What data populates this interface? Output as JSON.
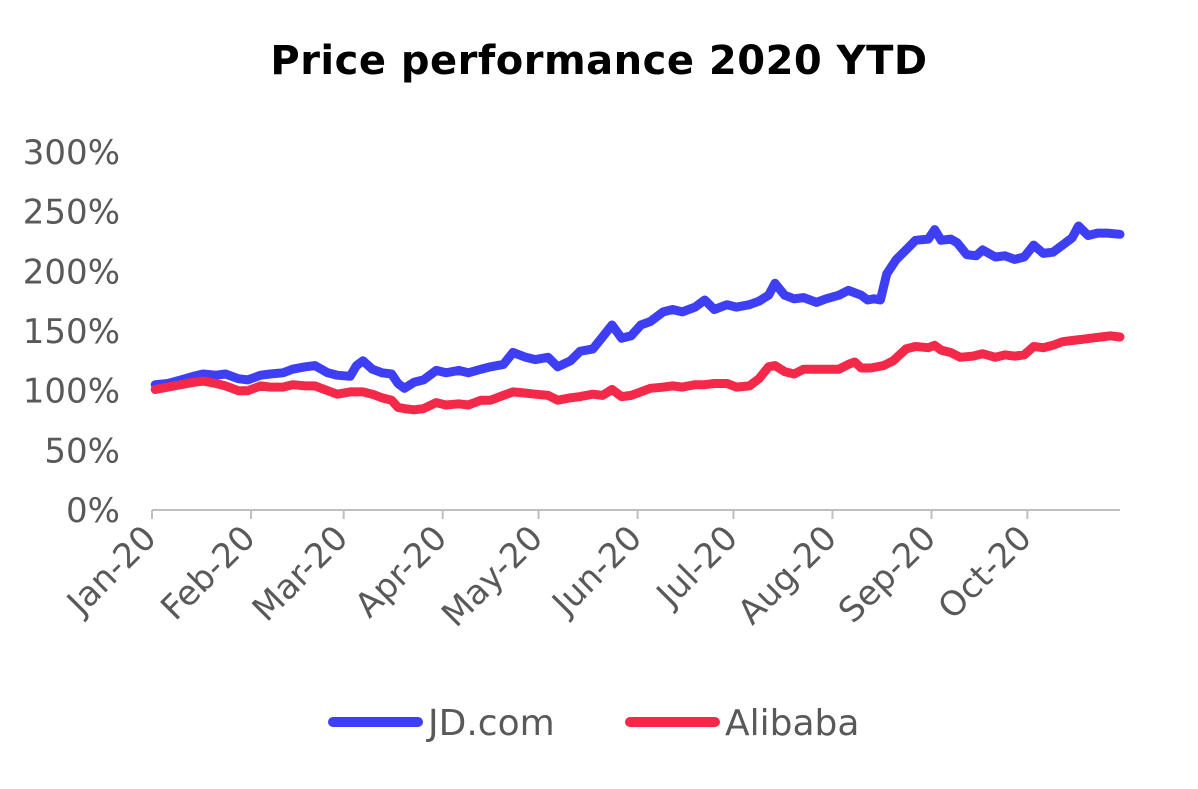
{
  "chart_data": {
    "type": "line",
    "title": "Price performance 2020 YTD",
    "xlabel": "",
    "ylabel": "",
    "ylim": [
      0,
      3.0
    ],
    "y_tick_values": [
      0,
      0.5,
      1.0,
      1.5,
      2.0,
      2.5,
      3.0
    ],
    "y_tick_labels": [
      "0%",
      "50%",
      "100%",
      "150%",
      "200%",
      "250%",
      "300%"
    ],
    "x_tick_labels": [
      "Jan-20",
      "Feb-20",
      "Mar-20",
      "Apr-20",
      "May-20",
      "Jun-20",
      "Jul-20",
      "Aug-20",
      "Sep-20",
      "Oct-20"
    ],
    "x_range": [
      "2020-01-01",
      "2020-10-30"
    ],
    "grid": false,
    "legend_position": "bottom",
    "series": [
      {
        "name": "JD.com",
        "color": "#3e3ef5",
        "points": [
          [
            "2020-01-02",
            1.05
          ],
          [
            "2020-01-06",
            1.06
          ],
          [
            "2020-01-10",
            1.09
          ],
          [
            "2020-01-14",
            1.12
          ],
          [
            "2020-01-17",
            1.14
          ],
          [
            "2020-01-21",
            1.13
          ],
          [
            "2020-01-24",
            1.14
          ],
          [
            "2020-01-28",
            1.1
          ],
          [
            "2020-01-31",
            1.09
          ],
          [
            "2020-02-04",
            1.13
          ],
          [
            "2020-02-07",
            1.14
          ],
          [
            "2020-02-11",
            1.15
          ],
          [
            "2020-02-14",
            1.18
          ],
          [
            "2020-02-18",
            1.2
          ],
          [
            "2020-02-21",
            1.21
          ],
          [
            "2020-02-25",
            1.15
          ],
          [
            "2020-02-28",
            1.13
          ],
          [
            "2020-03-03",
            1.12
          ],
          [
            "2020-03-05",
            1.21
          ],
          [
            "2020-03-07",
            1.25
          ],
          [
            "2020-03-10",
            1.18
          ],
          [
            "2020-03-13",
            1.15
          ],
          [
            "2020-03-16",
            1.14
          ],
          [
            "2020-03-18",
            1.06
          ],
          [
            "2020-03-20",
            1.02
          ],
          [
            "2020-03-23",
            1.07
          ],
          [
            "2020-03-26",
            1.09
          ],
          [
            "2020-03-30",
            1.17
          ],
          [
            "2020-04-02",
            1.15
          ],
          [
            "2020-04-06",
            1.17
          ],
          [
            "2020-04-09",
            1.15
          ],
          [
            "2020-04-13",
            1.18
          ],
          [
            "2020-04-16",
            1.2
          ],
          [
            "2020-04-20",
            1.22
          ],
          [
            "2020-04-23",
            1.32
          ],
          [
            "2020-04-27",
            1.28
          ],
          [
            "2020-04-30",
            1.26
          ],
          [
            "2020-05-04",
            1.28
          ],
          [
            "2020-05-07",
            1.2
          ],
          [
            "2020-05-11",
            1.25
          ],
          [
            "2020-05-14",
            1.33
          ],
          [
            "2020-05-18",
            1.35
          ],
          [
            "2020-05-21",
            1.45
          ],
          [
            "2020-05-24",
            1.55
          ],
          [
            "2020-05-27",
            1.44
          ],
          [
            "2020-05-30",
            1.46
          ],
          [
            "2020-06-02",
            1.55
          ],
          [
            "2020-06-05",
            1.58
          ],
          [
            "2020-06-09",
            1.66
          ],
          [
            "2020-06-12",
            1.68
          ],
          [
            "2020-06-15",
            1.66
          ],
          [
            "2020-06-19",
            1.7
          ],
          [
            "2020-06-22",
            1.76
          ],
          [
            "2020-06-25",
            1.68
          ],
          [
            "2020-06-29",
            1.72
          ],
          [
            "2020-07-02",
            1.7
          ],
          [
            "2020-07-06",
            1.72
          ],
          [
            "2020-07-09",
            1.75
          ],
          [
            "2020-07-12",
            1.8
          ],
          [
            "2020-07-14",
            1.9
          ],
          [
            "2020-07-17",
            1.8
          ],
          [
            "2020-07-20",
            1.77
          ],
          [
            "2020-07-23",
            1.78
          ],
          [
            "2020-07-27",
            1.74
          ],
          [
            "2020-07-30",
            1.77
          ],
          [
            "2020-08-03",
            1.8
          ],
          [
            "2020-08-06",
            1.84
          ],
          [
            "2020-08-10",
            1.8
          ],
          [
            "2020-08-12",
            1.76
          ],
          [
            "2020-08-14",
            1.77
          ],
          [
            "2020-08-16",
            1.76
          ],
          [
            "2020-08-18",
            1.98
          ],
          [
            "2020-08-21",
            2.1
          ],
          [
            "2020-08-24",
            2.18
          ],
          [
            "2020-08-27",
            2.26
          ],
          [
            "2020-08-31",
            2.27
          ],
          [
            "2020-09-02",
            2.35
          ],
          [
            "2020-09-04",
            2.26
          ],
          [
            "2020-09-07",
            2.27
          ],
          [
            "2020-09-09",
            2.24
          ],
          [
            "2020-09-12",
            2.14
          ],
          [
            "2020-09-15",
            2.13
          ],
          [
            "2020-09-17",
            2.18
          ],
          [
            "2020-09-21",
            2.12
          ],
          [
            "2020-09-24",
            2.13
          ],
          [
            "2020-09-27",
            2.1
          ],
          [
            "2020-09-30",
            2.12
          ],
          [
            "2020-10-03",
            2.22
          ],
          [
            "2020-10-06",
            2.15
          ],
          [
            "2020-10-09",
            2.16
          ],
          [
            "2020-10-12",
            2.22
          ],
          [
            "2020-10-15",
            2.28
          ],
          [
            "2020-10-17",
            2.38
          ],
          [
            "2020-10-20",
            2.3
          ],
          [
            "2020-10-23",
            2.32
          ],
          [
            "2020-10-26",
            2.32
          ],
          [
            "2020-10-30",
            2.31
          ]
        ]
      },
      {
        "name": "Alibaba",
        "color": "#f4294a",
        "points": [
          [
            "2020-01-02",
            1.01
          ],
          [
            "2020-01-06",
            1.03
          ],
          [
            "2020-01-10",
            1.05
          ],
          [
            "2020-01-14",
            1.07
          ],
          [
            "2020-01-17",
            1.08
          ],
          [
            "2020-01-21",
            1.06
          ],
          [
            "2020-01-24",
            1.04
          ],
          [
            "2020-01-28",
            1.0
          ],
          [
            "2020-01-31",
            1.0
          ],
          [
            "2020-02-04",
            1.04
          ],
          [
            "2020-02-07",
            1.03
          ],
          [
            "2020-02-11",
            1.03
          ],
          [
            "2020-02-14",
            1.05
          ],
          [
            "2020-02-18",
            1.04
          ],
          [
            "2020-02-21",
            1.04
          ],
          [
            "2020-02-25",
            1.0
          ],
          [
            "2020-02-28",
            0.97
          ],
          [
            "2020-03-03",
            0.99
          ],
          [
            "2020-03-07",
            0.99
          ],
          [
            "2020-03-10",
            0.97
          ],
          [
            "2020-03-13",
            0.94
          ],
          [
            "2020-03-16",
            0.92
          ],
          [
            "2020-03-18",
            0.86
          ],
          [
            "2020-03-20",
            0.85
          ],
          [
            "2020-03-23",
            0.84
          ],
          [
            "2020-03-26",
            0.85
          ],
          [
            "2020-03-30",
            0.9
          ],
          [
            "2020-04-02",
            0.88
          ],
          [
            "2020-04-06",
            0.89
          ],
          [
            "2020-04-09",
            0.88
          ],
          [
            "2020-04-13",
            0.92
          ],
          [
            "2020-04-16",
            0.92
          ],
          [
            "2020-04-20",
            0.96
          ],
          [
            "2020-04-23",
            0.99
          ],
          [
            "2020-04-27",
            0.98
          ],
          [
            "2020-04-30",
            0.97
          ],
          [
            "2020-05-04",
            0.96
          ],
          [
            "2020-05-07",
            0.92
          ],
          [
            "2020-05-11",
            0.94
          ],
          [
            "2020-05-14",
            0.95
          ],
          [
            "2020-05-18",
            0.97
          ],
          [
            "2020-05-21",
            0.96
          ],
          [
            "2020-05-24",
            1.01
          ],
          [
            "2020-05-27",
            0.95
          ],
          [
            "2020-05-30",
            0.96
          ],
          [
            "2020-06-02",
            0.99
          ],
          [
            "2020-06-05",
            1.02
          ],
          [
            "2020-06-09",
            1.03
          ],
          [
            "2020-06-12",
            1.04
          ],
          [
            "2020-06-15",
            1.03
          ],
          [
            "2020-06-19",
            1.05
          ],
          [
            "2020-06-22",
            1.05
          ],
          [
            "2020-06-25",
            1.06
          ],
          [
            "2020-06-29",
            1.06
          ],
          [
            "2020-07-02",
            1.03
          ],
          [
            "2020-07-06",
            1.04
          ],
          [
            "2020-07-09",
            1.1
          ],
          [
            "2020-07-12",
            1.2
          ],
          [
            "2020-07-14",
            1.21
          ],
          [
            "2020-07-17",
            1.16
          ],
          [
            "2020-07-20",
            1.14
          ],
          [
            "2020-07-23",
            1.18
          ],
          [
            "2020-07-27",
            1.18
          ],
          [
            "2020-07-30",
            1.18
          ],
          [
            "2020-08-03",
            1.18
          ],
          [
            "2020-08-06",
            1.22
          ],
          [
            "2020-08-08",
            1.24
          ],
          [
            "2020-08-10",
            1.19
          ],
          [
            "2020-08-13",
            1.19
          ],
          [
            "2020-08-17",
            1.21
          ],
          [
            "2020-08-20",
            1.25
          ],
          [
            "2020-08-24",
            1.35
          ],
          [
            "2020-08-27",
            1.37
          ],
          [
            "2020-08-31",
            1.36
          ],
          [
            "2020-09-02",
            1.38
          ],
          [
            "2020-09-04",
            1.34
          ],
          [
            "2020-09-07",
            1.32
          ],
          [
            "2020-09-10",
            1.28
          ],
          [
            "2020-09-14",
            1.29
          ],
          [
            "2020-09-17",
            1.31
          ],
          [
            "2020-09-21",
            1.28
          ],
          [
            "2020-09-24",
            1.3
          ],
          [
            "2020-09-27",
            1.29
          ],
          [
            "2020-09-30",
            1.3
          ],
          [
            "2020-10-03",
            1.37
          ],
          [
            "2020-10-06",
            1.36
          ],
          [
            "2020-10-09",
            1.38
          ],
          [
            "2020-10-12",
            1.41
          ],
          [
            "2020-10-15",
            1.42
          ],
          [
            "2020-10-18",
            1.43
          ],
          [
            "2020-10-21",
            1.44
          ],
          [
            "2020-10-24",
            1.45
          ],
          [
            "2020-10-27",
            1.46
          ],
          [
            "2020-10-30",
            1.45
          ]
        ]
      }
    ]
  }
}
